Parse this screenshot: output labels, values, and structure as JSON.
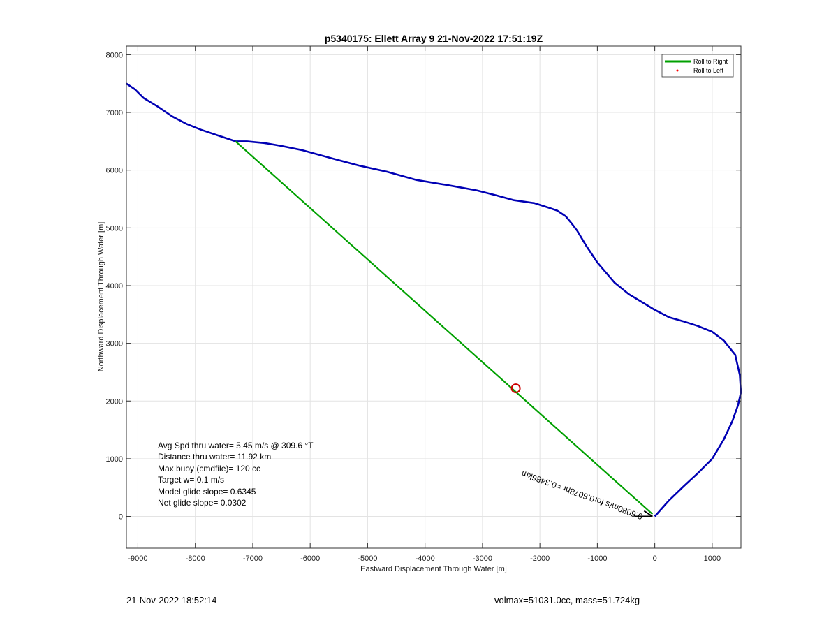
{
  "chart_data": {
    "type": "line",
    "title": "p5340175: Ellett Array 9 21-Nov-2022 17:51:19Z",
    "xlabel": "Eastward Displacement Through Water [m]",
    "ylabel": "Northward Displacement Through Water [m]",
    "xlim": [
      -9200,
      1500
    ],
    "ylim": [
      -550,
      8150
    ],
    "xticks": [
      -9000,
      -8000,
      -7000,
      -6000,
      -5000,
      -4000,
      -3000,
      -2000,
      -1000,
      0,
      1000
    ],
    "yticks": [
      0,
      1000,
      2000,
      3000,
      4000,
      5000,
      6000,
      7000,
      8000
    ],
    "grid": true,
    "legend_position": "top-right",
    "legend": [
      {
        "label": "Roll to Right",
        "color": "#00a000",
        "style": "line"
      },
      {
        "label": "Roll to Left",
        "color": "#ff0000",
        "style": "dot"
      }
    ],
    "series": [
      {
        "name": "",
        "color": "#0000b4",
        "x": [
          0,
          250,
          500,
          750,
          1000,
          1200,
          1350,
          1450,
          1500,
          1480,
          1400,
          1200,
          1000,
          750,
          500,
          250,
          0,
          -200,
          -450,
          -700,
          -1000,
          -1200,
          -1350,
          -1450,
          -1550,
          -1700,
          -1850,
          -2100,
          -2450,
          -2750,
          -3100,
          -3600,
          -4150,
          -4650,
          -5150,
          -5600,
          -6150,
          -6500,
          -6800,
          -7100,
          -7300,
          -7600,
          -7900,
          -8150,
          -8400,
          -8650,
          -8900,
          -9050,
          -9200
        ],
        "y": [
          0,
          280,
          520,
          750,
          1000,
          1330,
          1650,
          1930,
          2150,
          2450,
          2800,
          3050,
          3200,
          3300,
          3380,
          3450,
          3580,
          3700,
          3850,
          4050,
          4400,
          4700,
          4950,
          5080,
          5200,
          5300,
          5350,
          5430,
          5480,
          5560,
          5650,
          5740,
          5830,
          5970,
          6080,
          6200,
          6350,
          6420,
          6470,
          6500,
          6500,
          6600,
          6700,
          6800,
          6930,
          7100,
          7250,
          7400,
          7500
        ]
      },
      {
        "name": "",
        "color": "#00a000",
        "x": [
          -7300,
          -40
        ],
        "y": [
          6500,
          40
        ]
      }
    ],
    "markers": [
      {
        "shape": "circle",
        "x": -2420,
        "y": 2220,
        "color": "#cc0000"
      }
    ],
    "annotations": [
      {
        "text": "0.6080m/s for0.6078hr =0.3486km",
        "x": -200,
        "y": 0,
        "rotation": 200
      }
    ],
    "text_box": [
      "Avg Spd thru water=  5.45 m/s @ 309.6 °T",
      "Distance thru water= 11.92 km",
      "Max buoy (cmdfile)= 120 cc",
      "Target w= 0.1 m/s",
      "Model glide slope= 0.6345",
      "Net glide slope= 0.0302"
    ]
  },
  "footer": {
    "left": "21-Nov-2022 18:52:14",
    "right": "volmax=51031.0cc, mass=51.724kg"
  }
}
